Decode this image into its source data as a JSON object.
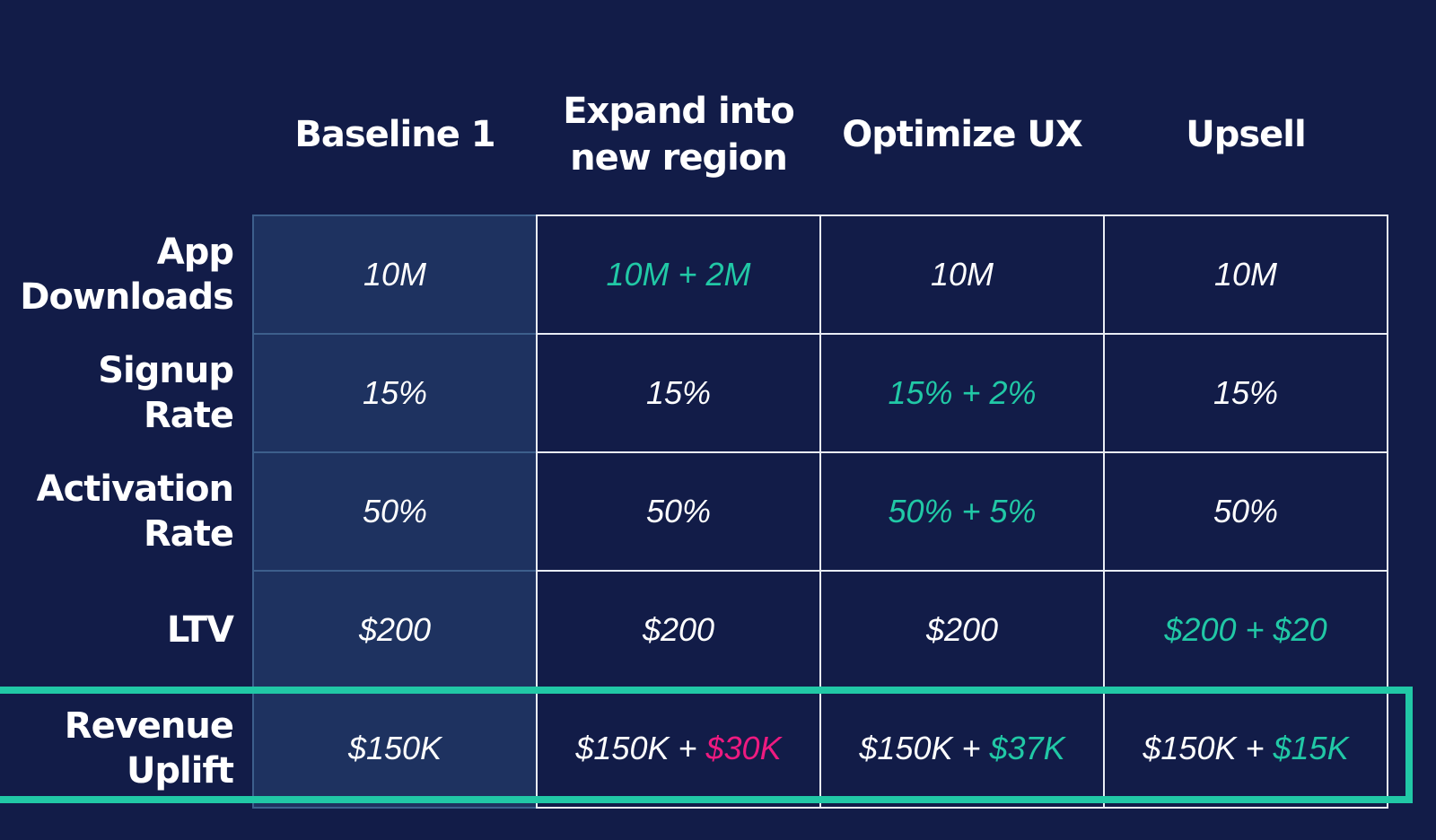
{
  "chart_data": {
    "type": "table",
    "columns": [
      "Baseline 1",
      "Expand into\nnew region",
      "Optimize UX",
      "Upsell"
    ],
    "rows": [
      {
        "label": "App\nDownloads",
        "cells": [
          {
            "text": "10M",
            "highlight": false
          },
          {
            "text": "10M + 2M",
            "highlight": true
          },
          {
            "text": "10M",
            "highlight": false
          },
          {
            "text": "10M",
            "highlight": false
          }
        ]
      },
      {
        "label": "Signup\nRate",
        "cells": [
          {
            "text": "15%",
            "highlight": false
          },
          {
            "text": "15%",
            "highlight": false
          },
          {
            "text": "15% + 2%",
            "highlight": true
          },
          {
            "text": "15%",
            "highlight": false
          }
        ]
      },
      {
        "label": "Activation\nRate",
        "cells": [
          {
            "text": "50%",
            "highlight": false
          },
          {
            "text": "50%",
            "highlight": false
          },
          {
            "text": "50% + 5%",
            "highlight": true
          },
          {
            "text": "50%",
            "highlight": false
          }
        ]
      },
      {
        "label": "LTV",
        "cells": [
          {
            "text": "$200",
            "highlight": false
          },
          {
            "text": "$200",
            "highlight": false
          },
          {
            "text": "$200",
            "highlight": false
          },
          {
            "text": "$200 + $20",
            "highlight": true
          }
        ]
      },
      {
        "label": "Revenue\nUplift",
        "cells": [
          {
            "segments": [
              {
                "text": "$150K",
                "tone": "normal"
              }
            ]
          },
          {
            "segments": [
              {
                "text": "$150K + ",
                "tone": "normal"
              },
              {
                "text": "$30K",
                "tone": "negative"
              }
            ]
          },
          {
            "segments": [
              {
                "text": "$150K + ",
                "tone": "normal"
              },
              {
                "text": "$37K",
                "tone": "positive"
              }
            ]
          },
          {
            "segments": [
              {
                "text": "$150K + ",
                "tone": "normal"
              },
              {
                "text": "$15K",
                "tone": "positive"
              }
            ]
          }
        ]
      }
    ],
    "colors": {
      "background": "#121c48",
      "baseline_column": "#1e3260",
      "highlight": "#21c8a6",
      "negative": "#ee1a80",
      "text": "#ffffff",
      "grid_line": "#e8ecf4"
    },
    "highlighted_row": "Revenue Uplift"
  }
}
